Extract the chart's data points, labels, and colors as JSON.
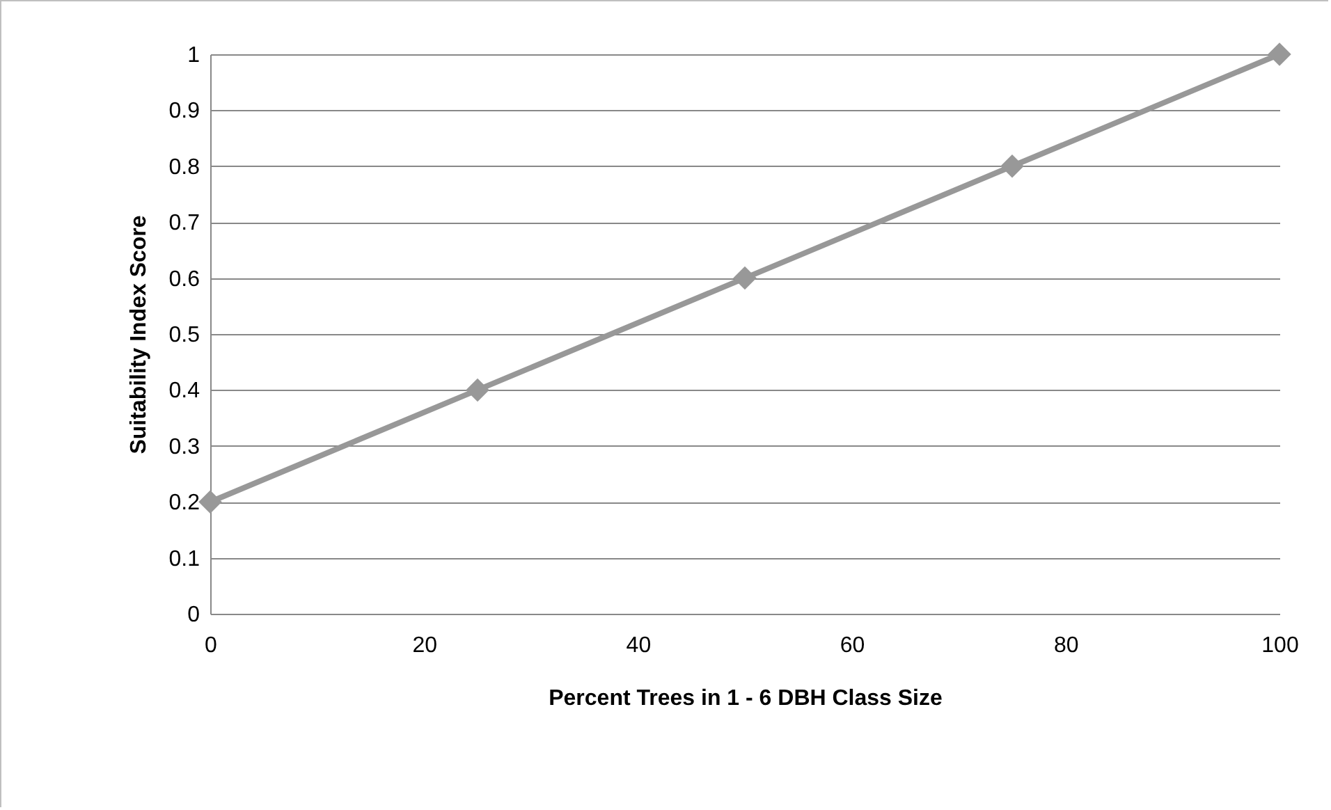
{
  "chart_data": {
    "type": "line",
    "xlabel": "Percent Trees in 1 - 6 DBH Class Size",
    "ylabel": "Suitability Index Score",
    "x": [
      0,
      25,
      50,
      75,
      100
    ],
    "series": [
      {
        "color": "#989898",
        "values": [
          0.2,
          0.4,
          0.6,
          0.8,
          1
        ]
      }
    ],
    "xlim": [
      0,
      100
    ],
    "xticks": [
      0,
      20,
      40,
      60,
      80,
      100
    ],
    "ylim": [
      0,
      1
    ],
    "yticks": [
      0,
      0.1,
      0.2,
      0.3,
      0.4,
      0.5,
      0.6,
      0.7,
      0.8,
      0.9,
      1
    ],
    "grid": "y",
    "marker": "diamond",
    "line_style": "solid"
  }
}
